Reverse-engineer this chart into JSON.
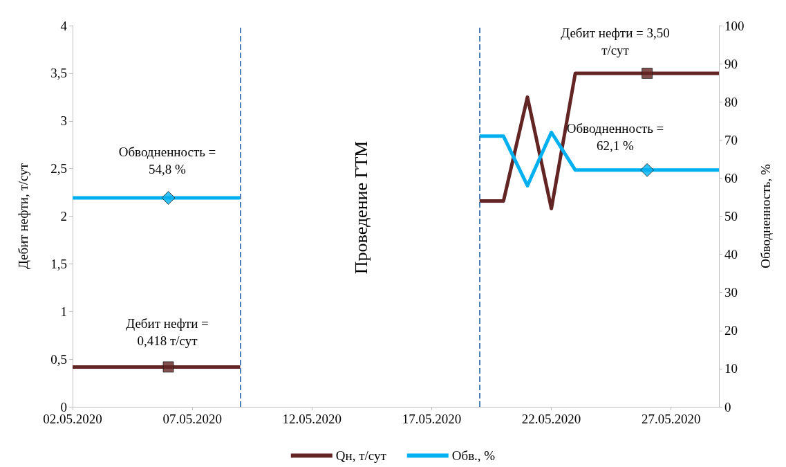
{
  "chart_data": {
    "type": "line",
    "ylabel": "Дебит нефти, т/сут",
    "y2label": "Обводненность, %",
    "x": [
      "2020-05-02",
      "2020-05-03",
      "2020-05-04",
      "2020-05-05",
      "2020-05-06",
      "2020-05-07",
      "2020-05-08",
      "2020-05-09",
      "2020-05-10",
      "2020-05-11",
      "2020-05-12",
      "2020-05-13",
      "2020-05-14",
      "2020-05-15",
      "2020-05-16",
      "2020-05-17",
      "2020-05-18",
      "2020-05-19",
      "2020-05-20",
      "2020-05-21",
      "2020-05-22",
      "2020-05-23",
      "2020-05-24",
      "2020-05-25",
      "2020-05-26",
      "2020-05-27",
      "2020-05-28",
      "2020-05-29"
    ],
    "series": [
      {
        "name": "Qн, т/сут",
        "color": "#632523",
        "values": [
          0.418,
          0.418,
          0.418,
          0.418,
          0.418,
          0.418,
          0.418,
          0.418,
          null,
          null,
          null,
          null,
          null,
          null,
          null,
          null,
          null,
          2.16,
          2.16,
          3.25,
          2.08,
          3.5,
          3.5,
          3.5,
          3.5,
          3.5,
          3.5,
          3.5
        ]
      },
      {
        "name": "Обв., %",
        "color": "#00b0f0",
        "axis": "y2",
        "values": [
          54.8,
          54.8,
          54.8,
          54.8,
          54.8,
          54.8,
          54.8,
          54.8,
          null,
          null,
          null,
          null,
          null,
          null,
          null,
          null,
          null,
          71,
          71,
          58,
          72,
          62.1,
          62.1,
          62.1,
          62.1,
          62.1,
          62.1,
          62.1
        ]
      },
      {
        "type": "scatter",
        "color": "#632523",
        "marker": "square",
        "x": [
          "2020-05-06",
          "2020-05-26"
        ],
        "values": [
          0.418,
          3.5
        ]
      },
      {
        "type": "scatter",
        "color": "#00b0f0",
        "marker": "diamond",
        "axis": "y2",
        "x": [
          "2020-05-06",
          "2020-05-26"
        ],
        "values": [
          54.8,
          62.1
        ]
      }
    ],
    "marker": "none",
    "xlim": [
      "2020-05-02",
      "2020-05-29"
    ],
    "xticks": [
      {
        "value": "2020-05-02",
        "label": "02.05.2020"
      },
      {
        "value": "2020-05-07",
        "label": "07.05.2020"
      },
      {
        "value": "2020-05-12",
        "label": "12.05.2020"
      },
      {
        "value": "2020-05-17",
        "label": "17.05.2020"
      },
      {
        "value": "2020-05-22",
        "label": "22.05.2020"
      },
      {
        "value": "2020-05-27",
        "label": "27.05.2020"
      }
    ],
    "ylim": [
      0,
      4
    ],
    "yticks": [
      0,
      {
        "value": 0.5,
        "label": "0,5"
      },
      1,
      {
        "value": 1.5,
        "label": "1,5"
      },
      2,
      {
        "value": 2.5,
        "label": "2,5"
      },
      3,
      {
        "value": 3.5,
        "label": "3,5"
      },
      4
    ],
    "y2lim": [
      0,
      100
    ],
    "y2ticks": [
      0,
      10,
      20,
      30,
      40,
      50,
      60,
      70,
      80,
      90,
      100
    ],
    "ref_lines": [
      {
        "axis": "x",
        "value": "2020-05-09",
        "color": "#4a7ebb",
        "line_style": "dashed"
      },
      {
        "axis": "x",
        "value": "2020-05-19",
        "color": "#4a7ebb",
        "line_style": "dashed"
      }
    ],
    "annotations": [
      "Обводненность =\n54,8 %",
      "Дебит нефти =\n0,418 т/сут",
      "Дебит нефти = 3,50\nт/сут",
      "Обводненность =\n62,1 %",
      "Проведение ГТМ"
    ],
    "grid": false,
    "legend": "bottom"
  }
}
